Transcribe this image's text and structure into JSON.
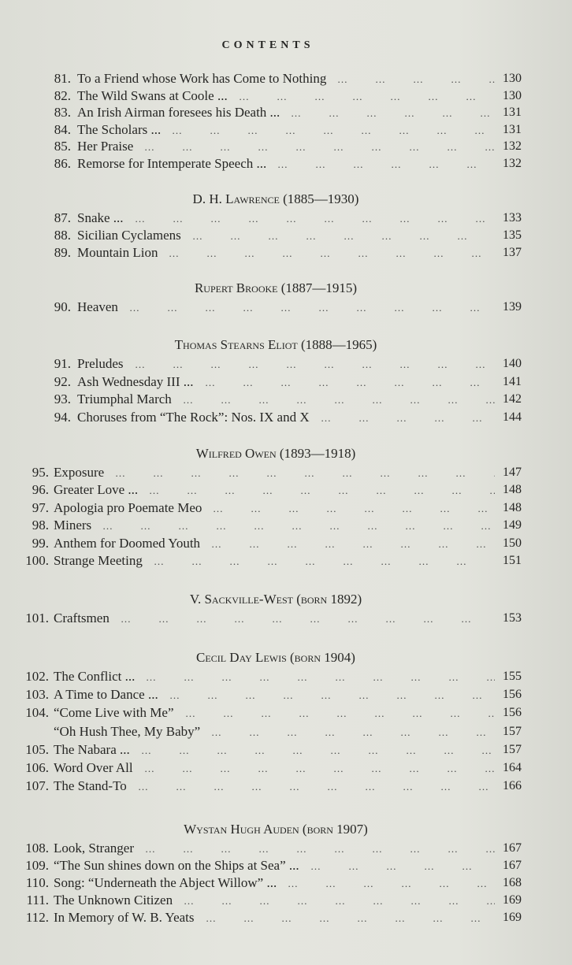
{
  "page_title": "CONTENTS",
  "sections": [
    {
      "heading": "",
      "entries": [
        {
          "num": "81.",
          "title": "To a Friend whose Work has Come to Nothing",
          "page": "130"
        },
        {
          "num": "82.",
          "title": "The Wild Swans at Coole ...",
          "page": "130"
        },
        {
          "num": "83.",
          "title": "An Irish Airman foresees his Death ...",
          "page": "131"
        },
        {
          "num": "84.",
          "title": "The Scholars ...",
          "page": "131"
        },
        {
          "num": "85.",
          "title": "Her Praise",
          "page": "132"
        },
        {
          "num": "86.",
          "title": "Remorse for Intemperate Speech ...",
          "page": "132"
        }
      ]
    },
    {
      "heading": "D. H. Lawrence (1885—1930)",
      "entries": [
        {
          "num": "87.",
          "title": "Snake ...",
          "page": "133"
        },
        {
          "num": "88.",
          "title": "Sicilian Cyclamens",
          "page": "135"
        },
        {
          "num": "89.",
          "title": "Mountain Lion",
          "page": "137"
        }
      ]
    },
    {
      "heading": "Rupert Brooke (1887—1915)",
      "entries": [
        {
          "num": "90.",
          "title": "Heaven",
          "page": "139"
        }
      ]
    },
    {
      "heading": "Thomas Stearns Eliot (1888—1965)",
      "entries": [
        {
          "num": "91.",
          "title": "Preludes",
          "page": "140"
        },
        {
          "num": "92.",
          "title": "Ash Wednesday III ...",
          "page": "141"
        },
        {
          "num": "93.",
          "title": "Triumphal March",
          "page": "142"
        },
        {
          "num": "94.",
          "title": "Choruses from “The Rock”: Nos. IX and X",
          "page": "144"
        }
      ]
    },
    {
      "heading": "Wilfred Owen (1893—1918)",
      "entries": [
        {
          "num": "95.",
          "title": "Exposure",
          "page": "147"
        },
        {
          "num": "96.",
          "title": "Greater Love ...",
          "page": "148"
        },
        {
          "num": "97.",
          "title": "Apologia pro Poemate Meo",
          "page": "148"
        },
        {
          "num": "98.",
          "title": "Miners",
          "page": "149"
        },
        {
          "num": "99.",
          "title": "Anthem for Doomed Youth",
          "page": "150"
        },
        {
          "num": "100.",
          "title": "Strange Meeting",
          "page": "151"
        }
      ]
    },
    {
      "heading": "V. Sackville-West (born 1892)",
      "entries": [
        {
          "num": "101.",
          "title": "Craftsmen",
          "page": "153"
        }
      ]
    },
    {
      "heading": "Cecil Day Lewis (born 1904)",
      "entries": [
        {
          "num": "102.",
          "title": "The Conflict ...",
          "page": "155"
        },
        {
          "num": "103.",
          "title": "A Time to Dance ...",
          "page": "156"
        },
        {
          "num": "104.",
          "title": "“Come Live with Me”",
          "page": "156"
        },
        {
          "num": "",
          "title": "“Oh Hush Thee, My Baby”",
          "page": "157"
        },
        {
          "num": "105.",
          "title": "The Nabara ...",
          "page": "157"
        },
        {
          "num": "106.",
          "title": "Word Over All",
          "page": "164"
        },
        {
          "num": "107.",
          "title": "The Stand-To",
          "page": "166"
        }
      ]
    },
    {
      "heading": "Wystan Hugh Auden (born 1907)",
      "entries": [
        {
          "num": "108.",
          "title": "Look, Stranger",
          "page": "167"
        },
        {
          "num": "109.",
          "title": "“The Sun shines down on the Ships at Sea” ...",
          "page": "167"
        },
        {
          "num": "110.",
          "title": "Song: “Underneath the Abject Willow” ...",
          "page": "168"
        },
        {
          "num": "111.",
          "title": "The Unknown Citizen",
          "page": "169"
        },
        {
          "num": "112.",
          "title": "In Memory of W. B. Yeats",
          "page": "169"
        }
      ]
    }
  ]
}
